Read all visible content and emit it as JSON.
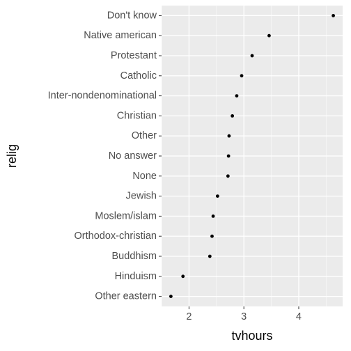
{
  "chart_data": {
    "type": "scatter",
    "xlabel": "tvhours",
    "ylabel": "relig",
    "x_ticks": [
      2,
      3,
      4
    ],
    "xlim": [
      1.5,
      4.8
    ],
    "grid": true,
    "categories_top_to_bottom": [
      "Don't know",
      "Native american",
      "Protestant",
      "Catholic",
      "Inter-nondenominational",
      "Christian",
      "Other",
      "No answer",
      "None",
      "Jewish",
      "Moslem/islam",
      "Orthodox-christian",
      "Buddhism",
      "Hinduism",
      "Other eastern"
    ],
    "points": [
      {
        "relig": "Don't know",
        "tvhours": 4.63
      },
      {
        "relig": "Native american",
        "tvhours": 3.46
      },
      {
        "relig": "Protestant",
        "tvhours": 3.15
      },
      {
        "relig": "Catholic",
        "tvhours": 2.96
      },
      {
        "relig": "Inter-nondenominational",
        "tvhours": 2.87
      },
      {
        "relig": "Christian",
        "tvhours": 2.79
      },
      {
        "relig": "Other",
        "tvhours": 2.73
      },
      {
        "relig": "No answer",
        "tvhours": 2.72
      },
      {
        "relig": "None",
        "tvhours": 2.71
      },
      {
        "relig": "Jewish",
        "tvhours": 2.52
      },
      {
        "relig": "Moslem/islam",
        "tvhours": 2.44
      },
      {
        "relig": "Orthodox-christian",
        "tvhours": 2.42
      },
      {
        "relig": "Buddhism",
        "tvhours": 2.38
      },
      {
        "relig": "Hinduism",
        "tvhours": 1.89
      },
      {
        "relig": "Other eastern",
        "tvhours": 1.67
      }
    ],
    "colors": {
      "panel_background": "#ebebeb",
      "major_grid": "#ffffff",
      "point": "#000000",
      "tick_label": "#4d4d4d",
      "axis_title": "#000000"
    }
  }
}
